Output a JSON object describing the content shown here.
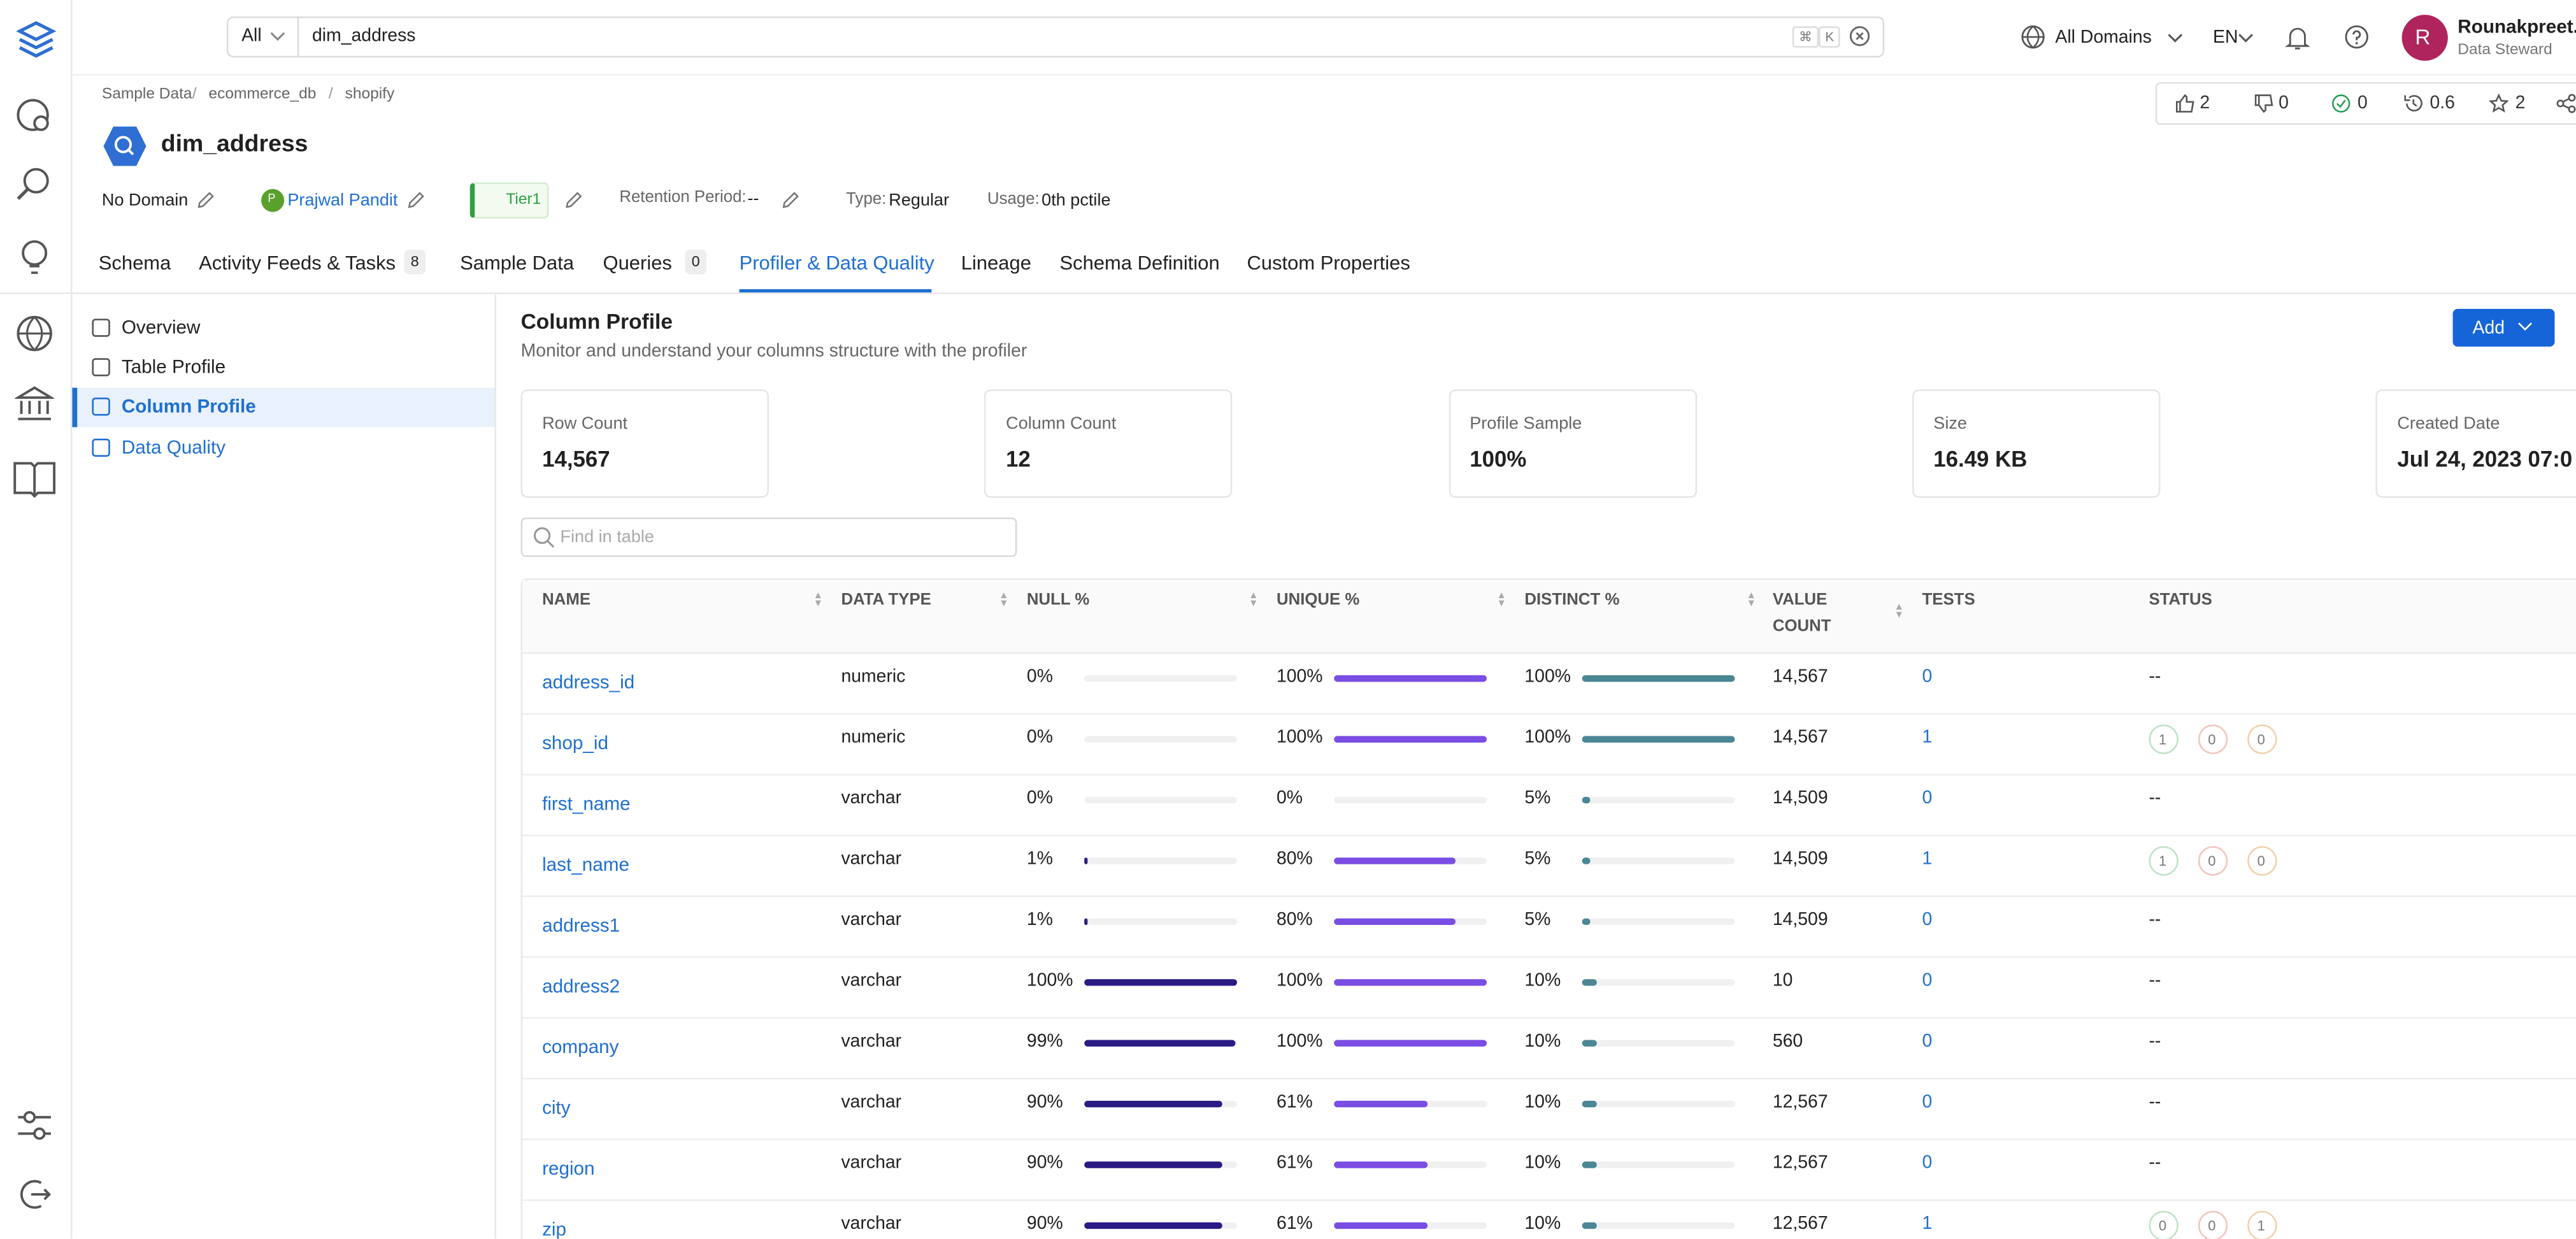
{
  "search": {
    "scope": "All",
    "query": "dim_address",
    "keys": [
      "⌘",
      "K"
    ]
  },
  "header": {
    "domains": "All Domains",
    "language": "EN",
    "user": {
      "initial": "R",
      "name": "Rounakpreet.",
      "role": "Data Steward"
    }
  },
  "breadcrumb": [
    "Sample Data",
    "ecommerce_db",
    "shopify"
  ],
  "entity": {
    "name": "dim_address",
    "stats": [
      "2",
      "0",
      "0",
      "0.6",
      "2"
    ],
    "domain": "No Domain",
    "owner_initial": "P",
    "owner": "Prajwal Pandit",
    "tier": "Tier1",
    "retention_label": "Retention Period:",
    "retention_value": "--",
    "type_label": "Type:",
    "type_value": "Regular",
    "usage_label": "Usage:",
    "usage_value": "0th pctile"
  },
  "tabs": [
    {
      "label": "Schema"
    },
    {
      "label": "Activity Feeds & Tasks",
      "count": 8
    },
    {
      "label": "Sample Data"
    },
    {
      "label": "Queries",
      "count": 0
    },
    {
      "label": "Profiler & Data Quality",
      "active": true
    },
    {
      "label": "Lineage"
    },
    {
      "label": "Schema Definition"
    },
    {
      "label": "Custom Properties"
    }
  ],
  "sidebar": [
    {
      "label": "Overview"
    },
    {
      "label": "Table Profile"
    },
    {
      "label": "Column Profile",
      "active": true
    },
    {
      "label": "Data Quality"
    }
  ],
  "section": {
    "title": "Column Profile",
    "subtitle": "Monitor and understand your columns structure with the profiler",
    "button": "Add"
  },
  "cards": [
    {
      "label": "Row Count",
      "value": "14,567"
    },
    {
      "label": "Column Count",
      "value": "12"
    },
    {
      "label": "Profile Sample",
      "value": "100%"
    },
    {
      "label": "Size",
      "value": "16.49 KB"
    },
    {
      "label": "Created Date",
      "value": "Jul 24, 2023 07:0"
    }
  ],
  "table": {
    "search_placeholder": "Find in table",
    "columns": [
      "NAME",
      "DATA TYPE",
      "NULL %",
      "UNIQUE %",
      "DISTINCT %",
      "VALUE COUNT",
      "TESTS",
      "STATUS"
    ],
    "rows": [
      {
        "name": "address_id",
        "type": "numeric",
        "null": {
          "value": 0,
          "label": "0%"
        },
        "unique": {
          "value": 100,
          "label": "100%"
        },
        "distinct": {
          "value": 100,
          "label": "100%"
        },
        "count": "14,567",
        "tests": 0,
        "status": "--"
      },
      {
        "name": "shop_id",
        "type": "numeric",
        "null": {
          "value": 0,
          "label": "0%"
        },
        "unique": {
          "value": 100,
          "label": "100%"
        },
        "distinct": {
          "value": 100,
          "label": "100%"
        },
        "count": "14,567",
        "tests": 1,
        "status": [
          1,
          0,
          0
        ]
      },
      {
        "name": "first_name",
        "type": "varchar",
        "null": {
          "value": 0,
          "label": "0%"
        },
        "unique": {
          "value": 0,
          "label": "0%"
        },
        "distinct": {
          "value": 5,
          "label": "5%"
        },
        "count": "14,509",
        "tests": 0,
        "status": "--"
      },
      {
        "name": "last_name",
        "type": "varchar",
        "null": {
          "value": 1,
          "label": "1%"
        },
        "unique": {
          "value": 80,
          "label": "80%"
        },
        "distinct": {
          "value": 5,
          "label": "5%"
        },
        "count": "14,509",
        "tests": 1,
        "status": [
          1,
          0,
          0
        ]
      },
      {
        "name": "address1",
        "type": "varchar",
        "null": {
          "value": 1,
          "label": "1%"
        },
        "unique": {
          "value": 80,
          "label": "80%"
        },
        "distinct": {
          "value": 5,
          "label": "5%"
        },
        "count": "14,509",
        "tests": 0,
        "status": "--"
      },
      {
        "name": "address2",
        "type": "varchar",
        "null": {
          "value": 100,
          "label": "100%"
        },
        "unique": {
          "value": 100,
          "label": "100%"
        },
        "distinct": {
          "value": 10,
          "label": "10%"
        },
        "count": "10",
        "tests": 0,
        "status": "--"
      },
      {
        "name": "company",
        "type": "varchar",
        "null": {
          "value": 99,
          "label": "99%"
        },
        "unique": {
          "value": 100,
          "label": "100%"
        },
        "distinct": {
          "value": 10,
          "label": "10%"
        },
        "count": "560",
        "tests": 0,
        "status": "--"
      },
      {
        "name": "city",
        "type": "varchar",
        "null": {
          "value": 90,
          "label": "90%"
        },
        "unique": {
          "value": 61,
          "label": "61%"
        },
        "distinct": {
          "value": 10,
          "label": "10%"
        },
        "count": "12,567",
        "tests": 0,
        "status": "--"
      },
      {
        "name": "region",
        "type": "varchar",
        "null": {
          "value": 90,
          "label": "90%"
        },
        "unique": {
          "value": 61,
          "label": "61%"
        },
        "distinct": {
          "value": 10,
          "label": "10%"
        },
        "count": "12,567",
        "tests": 0,
        "status": "--"
      },
      {
        "name": "zip",
        "type": "varchar",
        "null": {
          "value": 90,
          "label": "90%"
        },
        "unique": {
          "value": 61,
          "label": "61%"
        },
        "distinct": {
          "value": 10,
          "label": "10%"
        },
        "count": "12,567",
        "tests": 1,
        "status": [
          0,
          0,
          1
        ]
      }
    ]
  }
}
